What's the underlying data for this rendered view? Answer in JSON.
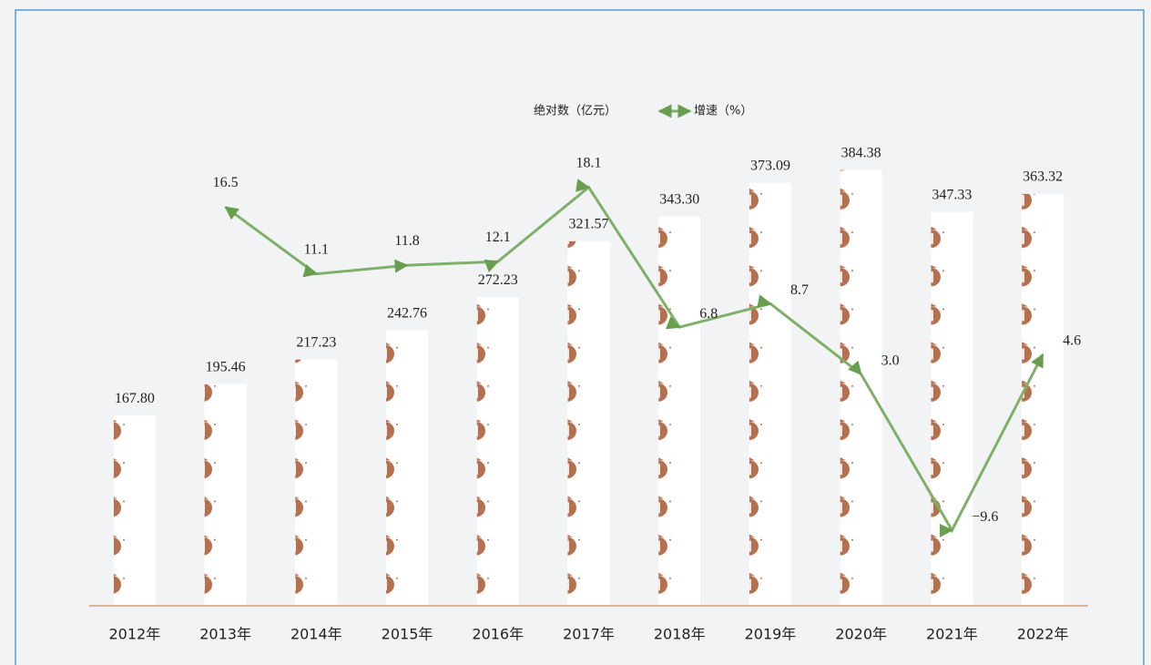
{
  "chart_data": {
    "type": "bar_line",
    "legend": [
      "绝对数（亿元）",
      "增速（%）"
    ],
    "categories": [
      "2012年",
      "2013年",
      "2014年",
      "2015年",
      "2016年",
      "2017年",
      "2018年",
      "2019年",
      "2020年",
      "2021年",
      "2022年"
    ],
    "series": [
      {
        "name": "绝对数（亿元）",
        "type": "bar",
        "color": "#b5714f",
        "values": [
          167.8,
          195.46,
          217.23,
          242.76,
          272.23,
          321.57,
          343.3,
          373.09,
          384.38,
          347.33,
          363.32
        ],
        "value_labels": [
          "167.80",
          "195.46",
          "217.23",
          "242.76",
          "272.23",
          "321.57",
          "343.30",
          "373.09",
          "384.38",
          "347.33",
          "363.32"
        ]
      },
      {
        "name": "增速（%）",
        "type": "line",
        "axis": "y2",
        "color": "#7fb069",
        "values": [
          null,
          16.5,
          11.1,
          11.8,
          12.1,
          18.1,
          6.8,
          8.7,
          3.0,
          -9.6,
          4.6
        ],
        "value_labels": [
          null,
          "16.5",
          "11.1",
          "11.8",
          "12.1",
          "18.1",
          "6.8",
          "8.7",
          "3.0",
          "−9.6",
          "4.6"
        ]
      }
    ],
    "ylim": [
      0,
      450
    ],
    "y2lim": [
      -15.7,
      25.5
    ]
  }
}
